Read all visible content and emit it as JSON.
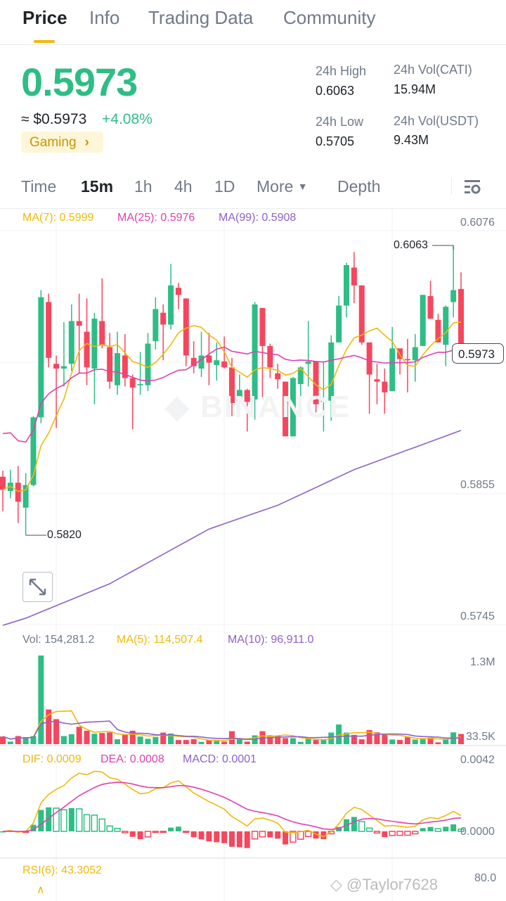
{
  "tabs": [
    {
      "label": "Price",
      "active": true
    },
    {
      "label": "Info"
    },
    {
      "label": "Trading Data"
    },
    {
      "label": "Community"
    }
  ],
  "ticker": {
    "last_price": "0.5973",
    "usd_price": "≈ $0.5973",
    "change": "+4.08%",
    "category": "Gaming",
    "category_chevron": "›",
    "stats": {
      "high_label": "24h High",
      "high": "0.6063",
      "low_label": "24h Low",
      "low": "0.5705",
      "vol_base_label": "24h Vol(CATI)",
      "vol_base": "15.94M",
      "vol_quote_label": "24h Vol(USDT)",
      "vol_quote": "9.43M"
    }
  },
  "intervals": {
    "items": [
      "Time",
      "15m",
      "1h",
      "4h",
      "1D"
    ],
    "active": "15m",
    "more": "More",
    "more_icon": "caret-down",
    "depth": "Depth",
    "settings_icon": "chart-settings"
  },
  "colors": {
    "up": "#2EBD85",
    "down": "#F6465D",
    "ma7": "#F0B90B",
    "ma25": "#E040B0",
    "ma99": "#8E61C9",
    "accent": "#F0B90B"
  },
  "main_chart": {
    "ma_labels": {
      "ma7": "MA(7): 0.5999",
      "ma25": "MA(25): 0.5976",
      "ma99": "MA(99): 0.5908"
    },
    "axis_labels": [
      "0.6076",
      "0.5855",
      "0.5745"
    ],
    "axis_values": [
      0.6076,
      0.5855,
      0.5745
    ],
    "high_marker": "0.6063",
    "low_marker": "0.5820",
    "current_price": "0.5973",
    "watermark": "BINANCE",
    "candles_ohlc": [
      [
        0.5869,
        0.5874,
        0.584,
        0.5858
      ],
      [
        0.5857,
        0.5875,
        0.5851,
        0.5864
      ],
      [
        0.5864,
        0.5878,
        0.583,
        0.5848
      ],
      [
        0.5843,
        0.5872,
        0.582,
        0.5862
      ],
      [
        0.5862,
        0.592,
        0.5861,
        0.5919
      ],
      [
        0.5919,
        0.6026,
        0.5914,
        0.602
      ],
      [
        0.6016,
        0.6023,
        0.5961,
        0.5969
      ],
      [
        0.5964,
        0.5971,
        0.591,
        0.596
      ],
      [
        0.596,
        0.5999,
        0.5945,
        0.5962
      ],
      [
        0.5964,
        0.6014,
        0.5958,
        0.6
      ],
      [
        0.6,
        0.6023,
        0.5956,
        0.5996
      ],
      [
        0.5991,
        0.6019,
        0.5946,
        0.5961
      ],
      [
        0.596,
        0.6007,
        0.593,
        0.6002
      ],
      [
        0.6,
        0.6036,
        0.5977,
        0.598
      ],
      [
        0.5978,
        0.599,
        0.5943,
        0.5949
      ],
      [
        0.5946,
        0.5991,
        0.5938,
        0.5973
      ],
      [
        0.5971,
        0.5989,
        0.5945,
        0.5952
      ],
      [
        0.5952,
        0.5955,
        0.5909,
        0.5944
      ],
      [
        0.5946,
        0.5974,
        0.5938,
        0.5947
      ],
      [
        0.5946,
        0.599,
        0.5941,
        0.5981
      ],
      [
        0.5983,
        0.602,
        0.5976,
        0.601
      ],
      [
        0.6007,
        0.6014,
        0.5967,
        0.5997
      ],
      [
        0.5997,
        0.6048,
        0.5993,
        0.603
      ],
      [
        0.6028,
        0.6032,
        0.601,
        0.6022
      ],
      [
        0.6019,
        0.6019,
        0.5962,
        0.5971
      ],
      [
        0.5969,
        0.5983,
        0.5956,
        0.5962
      ],
      [
        0.596,
        0.5991,
        0.5953,
        0.5971
      ],
      [
        0.5971,
        0.599,
        0.5946,
        0.5965
      ],
      [
        0.5963,
        0.5982,
        0.595,
        0.5967
      ],
      [
        0.5966,
        0.5987,
        0.596,
        0.5961
      ],
      [
        0.5961,
        0.5969,
        0.592,
        0.5931
      ],
      [
        0.5935,
        0.5955,
        0.5922,
        0.5942
      ],
      [
        0.5942,
        0.5943,
        0.5907,
        0.5932
      ],
      [
        0.5934,
        0.6016,
        0.5917,
        0.6014
      ],
      [
        0.6011,
        0.6011,
        0.5936,
        0.5979
      ],
      [
        0.5979,
        0.5981,
        0.5952,
        0.5961
      ],
      [
        0.5956,
        0.5964,
        0.5943,
        0.5951
      ],
      [
        0.5949,
        0.5949,
        0.5903,
        0.5903
      ],
      [
        0.5903,
        0.5953,
        0.5903,
        0.5952
      ],
      [
        0.5947,
        0.5962,
        0.5922,
        0.5961
      ],
      [
        0.5964,
        0.6,
        0.5945,
        0.5966
      ],
      [
        0.5966,
        0.5966,
        0.5923,
        0.593
      ],
      [
        0.5932,
        0.5965,
        0.5907,
        0.5933
      ],
      [
        0.5933,
        0.5988,
        0.5916,
        0.5982
      ],
      [
        0.5982,
        0.6021,
        0.5982,
        0.6013
      ],
      [
        0.6013,
        0.6049,
        0.6003,
        0.6047
      ],
      [
        0.6045,
        0.6058,
        0.6015,
        0.603
      ],
      [
        0.603,
        0.603,
        0.598,
        0.5982
      ],
      [
        0.5982,
        0.5982,
        0.5922,
        0.5955
      ],
      [
        0.5951,
        0.5964,
        0.593,
        0.5949
      ],
      [
        0.5949,
        0.596,
        0.5922,
        0.594
      ],
      [
        0.5941,
        0.5995,
        0.5941,
        0.5977
      ],
      [
        0.5977,
        0.5977,
        0.5955,
        0.5968
      ],
      [
        0.5968,
        0.5985,
        0.594,
        0.5967
      ],
      [
        0.5967,
        0.5989,
        0.5949,
        0.5978
      ],
      [
        0.5979,
        0.6022,
        0.5979,
        0.6022
      ],
      [
        0.6021,
        0.6034,
        0.6002,
        0.6002
      ],
      [
        0.6001,
        0.6006,
        0.5982,
        0.5982
      ],
      [
        0.598,
        0.6013,
        0.5962,
        0.6012
      ],
      [
        0.6016,
        0.6063,
        0.6003,
        0.6026
      ],
      [
        0.6027,
        0.6041,
        0.597,
        0.5973
      ]
    ],
    "ma99_points": [
      [
        0,
        0.5744
      ],
      [
        3,
        0.575
      ],
      [
        14,
        0.5779
      ],
      [
        27,
        0.5825
      ],
      [
        36,
        0.5845
      ],
      [
        46,
        0.5875
      ],
      [
        60,
        0.5908
      ]
    ]
  },
  "volume": {
    "labels": {
      "vol": "Vol: 154,281.2",
      "ma5": "MA(5): 114,507.4",
      "ma10": "MA(10): 96,911.0"
    },
    "axis_labels": [
      "1.3M",
      "33.5K"
    ],
    "values": [
      115500,
      38500,
      122500,
      105000,
      122500,
      1340500,
      525000,
      378000,
      122500,
      150500,
      262500,
      203000,
      157500,
      168000,
      178500,
      73500,
      143500,
      203000,
      115500,
      80500,
      108500,
      175000,
      161000,
      63000,
      63000,
      77000,
      35000,
      63000,
      49000,
      38500,
      196000,
      73500,
      38500,
      133000,
      196000,
      133000,
      133000,
      91000,
      91000,
      35000,
      80500,
      63000,
      70000,
      175000,
      297500,
      175000,
      140000,
      73500,
      213500,
      178500,
      143500,
      70000,
      63000,
      105000,
      70000,
      91000,
      98000,
      28000,
      73500,
      178500,
      154281.2
    ]
  },
  "macd": {
    "labels": {
      "dif": "DIF: 0.0009",
      "dea": "DEA: 0.0008",
      "macd": "MACD: 0.0001"
    },
    "axis_labels": [
      "0.0042",
      "0.0000"
    ]
  },
  "rsi": {
    "label": "RSI(6): 43.3052",
    "axis_label": "80.0"
  },
  "watermark_user": "@Taylor7628"
}
